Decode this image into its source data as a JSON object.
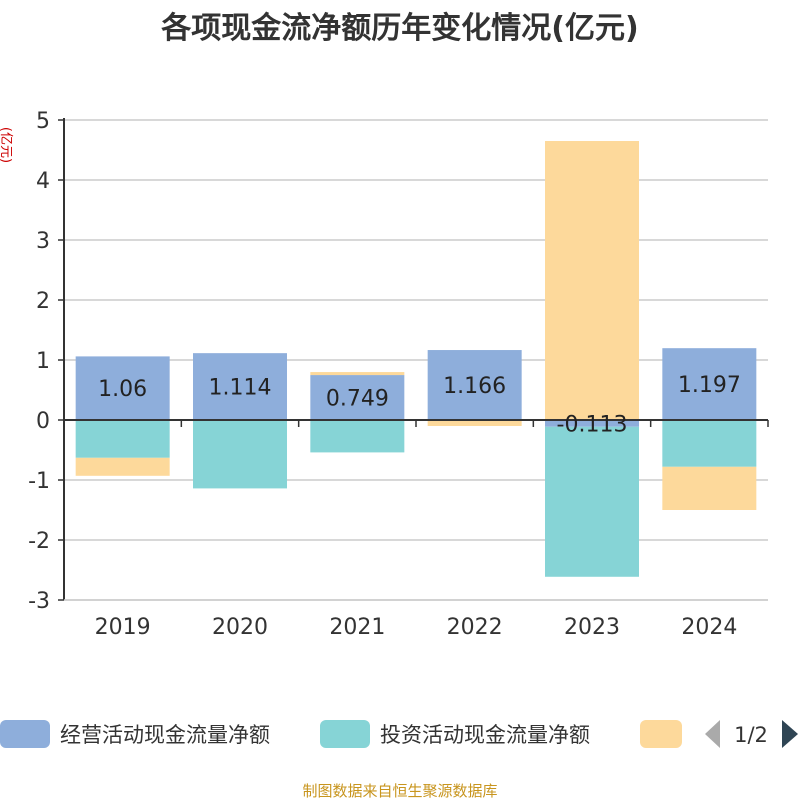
{
  "chart_data": {
    "type": "bar",
    "stacked": true,
    "title": "各项现金流净额历年变化情况(亿元)",
    "ylabel": "(亿元)",
    "xlabel": "",
    "categories": [
      "2019",
      "2020",
      "2021",
      "2022",
      "2023",
      "2024"
    ],
    "ylim": [
      -3,
      5
    ],
    "yticks": [
      5,
      4,
      3,
      2,
      1,
      0,
      -1,
      -2,
      -3
    ],
    "grid": true,
    "legend_position": "bottom",
    "series": [
      {
        "name": "经营活动现金流量净额",
        "color": "#8eaedb",
        "values": [
          1.06,
          1.114,
          0.749,
          1.166,
          -0.113,
          1.197
        ],
        "labels": [
          "1.06",
          "1.114",
          "0.749",
          "1.166",
          "-0.113",
          "1.197"
        ]
      },
      {
        "name": "投资活动现金流量净额",
        "color": "#86d4d6",
        "values": [
          -0.63,
          -1.14,
          -0.54,
          0.0,
          -2.5,
          -0.78
        ]
      },
      {
        "name": "",
        "color": "#fdd99b",
        "values": [
          -0.3,
          0.0,
          0.05,
          -0.1,
          4.65,
          -0.72
        ]
      }
    ]
  },
  "legend": {
    "items": [
      {
        "label": "经营活动现金流量净额",
        "color": "#8eaedb"
      },
      {
        "label": "投资活动现金流量净额",
        "color": "#86d4d6"
      },
      {
        "label": "",
        "color": "#fdd99b"
      }
    ],
    "page_indicator": "1/2",
    "prev_icon": "triangle-left-icon",
    "next_icon": "triangle-right-icon"
  },
  "footer": {
    "source_text": "制图数据来自恒生聚源数据库"
  }
}
